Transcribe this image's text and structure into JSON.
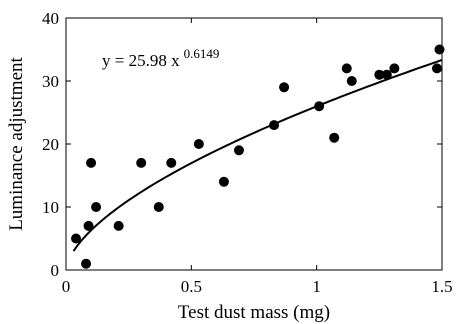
{
  "chart_data": {
    "type": "scatter",
    "title": "",
    "xlabel": "Test dust mass (mg)",
    "ylabel": "Luminance adjustment",
    "xlim": [
      0,
      1.5
    ],
    "ylim": [
      0,
      40
    ],
    "x_ticks": [
      0,
      0.5,
      1,
      1.5
    ],
    "x_tick_labels": [
      "0",
      "0.5",
      "1",
      "1.5"
    ],
    "y_ticks": [
      0,
      10,
      20,
      30,
      40
    ],
    "y_tick_labels": [
      "0",
      "10",
      "20",
      "30",
      "40"
    ],
    "grid": false,
    "annotation": {
      "equation_base": "y = 25.98 x",
      "equation_exponent": "0.6149"
    },
    "fit": {
      "type": "power",
      "a": 25.98,
      "b": 0.6149,
      "x_range": [
        0.03,
        1.5
      ]
    },
    "series": [
      {
        "marker": "filled-circle",
        "color": "#000000",
        "points": [
          {
            "x": 0.04,
            "y": 5
          },
          {
            "x": 0.08,
            "y": 1
          },
          {
            "x": 0.09,
            "y": 7
          },
          {
            "x": 0.1,
            "y": 17
          },
          {
            "x": 0.12,
            "y": 10
          },
          {
            "x": 0.21,
            "y": 7
          },
          {
            "x": 0.3,
            "y": 17
          },
          {
            "x": 0.37,
            "y": 10
          },
          {
            "x": 0.42,
            "y": 17
          },
          {
            "x": 0.53,
            "y": 20
          },
          {
            "x": 0.63,
            "y": 14
          },
          {
            "x": 0.69,
            "y": 19
          },
          {
            "x": 0.83,
            "y": 23
          },
          {
            "x": 0.87,
            "y": 29
          },
          {
            "x": 1.01,
            "y": 26
          },
          {
            "x": 1.07,
            "y": 21
          },
          {
            "x": 1.12,
            "y": 32
          },
          {
            "x": 1.14,
            "y": 30
          },
          {
            "x": 1.25,
            "y": 31
          },
          {
            "x": 1.28,
            "y": 31
          },
          {
            "x": 1.31,
            "y": 32
          },
          {
            "x": 1.48,
            "y": 32
          },
          {
            "x": 1.49,
            "y": 35
          }
        ]
      }
    ]
  }
}
